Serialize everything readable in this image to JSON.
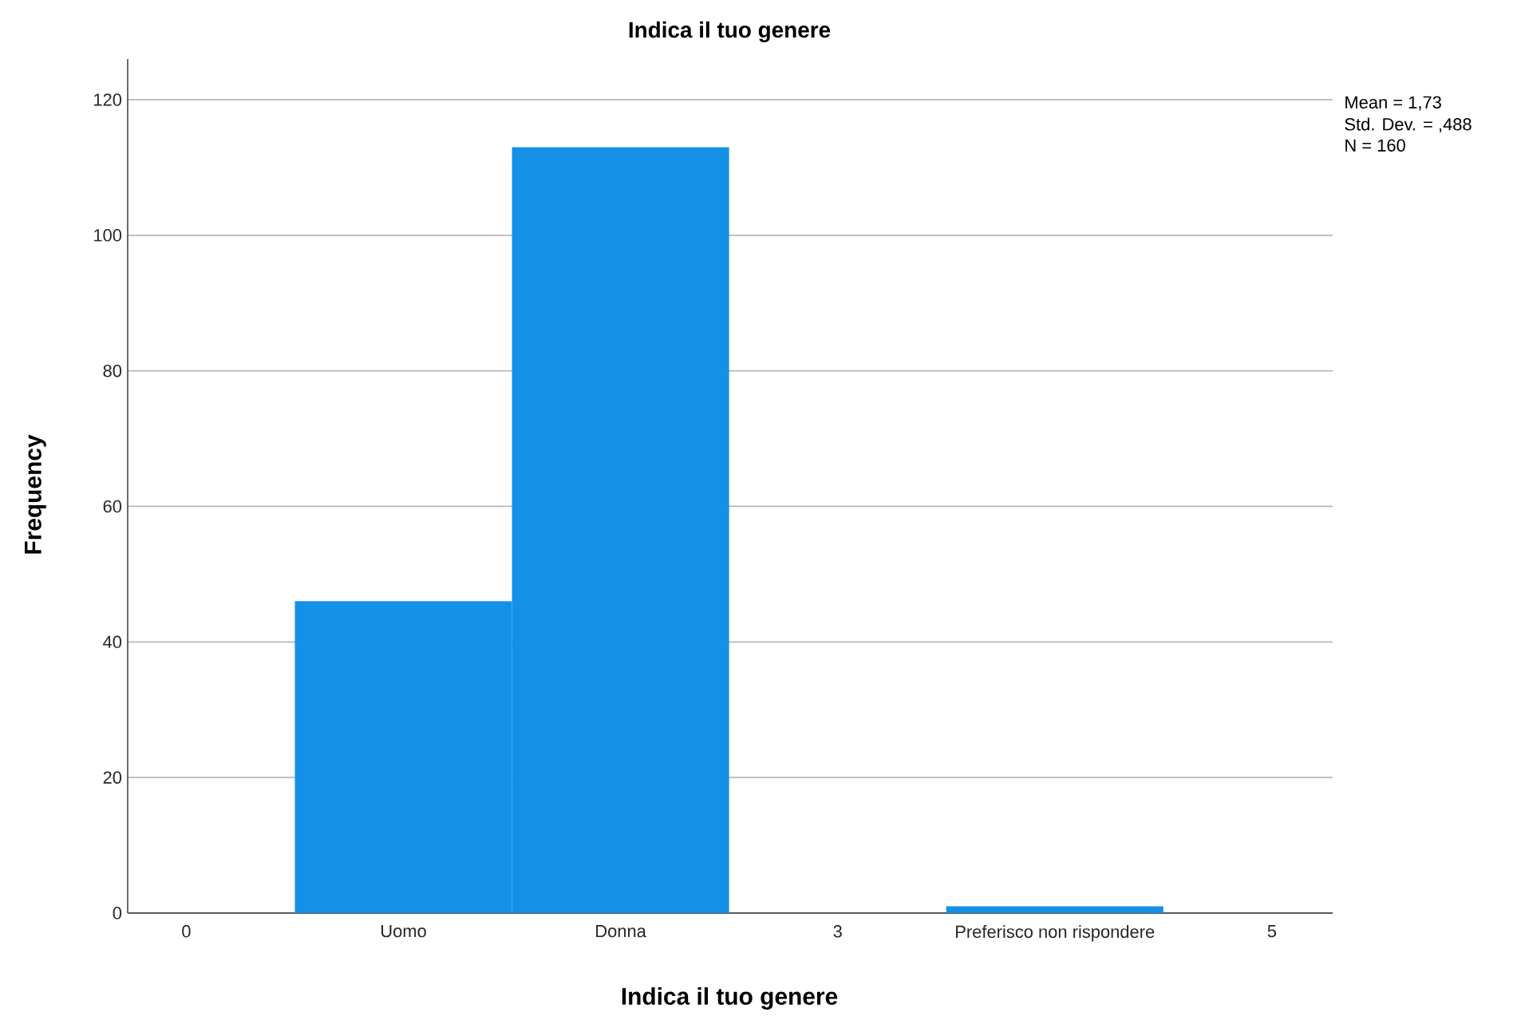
{
  "chart_data": {
    "type": "histogram",
    "title": "Indica il tuo genere",
    "xlabel": "Indica il tuo genere",
    "ylabel": "Frequency",
    "bins": [
      0.5,
      1.5,
      2.5,
      3.5,
      4.5
    ],
    "values": [
      46,
      113,
      0,
      1
    ],
    "color": "#1490e6",
    "xlim": [
      -0.27,
      5.28
    ],
    "xticks": [
      0,
      {
        "value": 1,
        "label": "Uomo"
      },
      {
        "value": 2,
        "label": "Donna"
      },
      3,
      {
        "value": 4,
        "label": "Preferisco non rispondere"
      },
      5
    ],
    "ylim": [
      0,
      126
    ],
    "yticks": [
      0,
      20,
      40,
      60,
      80,
      100,
      120
    ],
    "grid": "y",
    "annotations": [
      "Mean = 1,73",
      "Std. Dev. = ,488",
      "N = 160"
    ]
  }
}
